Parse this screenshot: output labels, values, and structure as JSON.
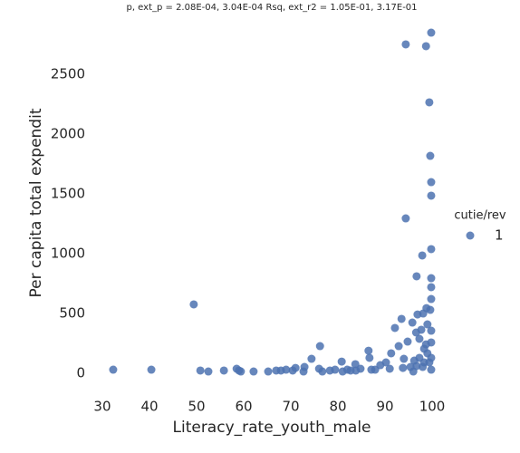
{
  "chart_data": {
    "type": "scatter",
    "title": "p, ext_p = 2.08E-04, 3.04E-04 Rsq, ext_r2 = 1.05E-01, 3.17E-01",
    "xlabel": "Literacy_rate_youth_male",
    "ylabel": "Per capita total expendit",
    "legend_title": "cutie/rev",
    "legend_position": "right",
    "series": [
      {
        "name": "1",
        "color": "#4c72b0",
        "x": [
          32.3,
          40.4,
          49.4,
          50.8,
          52.5,
          55.8,
          58.5,
          59,
          59.4,
          62.1,
          65.2,
          66.9,
          67.9,
          69,
          70.4,
          71,
          72.7,
          72.9,
          74.4,
          76.2,
          76,
          76.7,
          78.3,
          79.4,
          80.8,
          81,
          82,
          82.7,
          83.7,
          83.8,
          84.8,
          86.5,
          86.7,
          87.1,
          87.9,
          89,
          90.2,
          91,
          91.3,
          92.1,
          92.9,
          93.5,
          93.8,
          94,
          94.4,
          94.4,
          94.8,
          95.4,
          95.8,
          96,
          96.2,
          96.6,
          96.7,
          96.9,
          97.3,
          97.7,
          97.9,
          98.1,
          98.3,
          98.7,
          98.8,
          99,
          99.4,
          99.6,
          99.8,
          99.8,
          99.8,
          99.8,
          99.8,
          99.8,
          99.8,
          99.6,
          99.8,
          98.7,
          99,
          99.8,
          99.8,
          99.8,
          98,
          96.7,
          97.3,
          98.3,
          99.4
        ],
        "values": [
          30,
          30,
          576,
          23,
          15,
          23,
          38,
          23,
          15,
          15,
          15,
          23,
          23,
          30,
          23,
          45,
          15,
          53,
          121,
          227,
          38,
          15,
          23,
          30,
          98,
          15,
          30,
          23,
          76,
          23,
          38,
          189,
          129,
          30,
          30,
          68,
          91,
          38,
          167,
          379,
          227,
          455,
          45,
          121,
          2750,
          1295,
          265,
          53,
          424,
          15,
          106,
          341,
          811,
          492,
          288,
          364,
          985,
          500,
          91,
          2735,
          545,
          409,
          2265,
          1818,
          1038,
          2848,
          1598,
          1485,
          795,
          720,
          621,
          530,
          356,
          242,
          167,
          258,
          129,
          30,
          53,
          61,
          129,
          205,
          91
        ]
      }
    ],
    "xlim": [
      28.6,
      103.4
    ],
    "xticks": [
      30,
      40,
      50,
      60,
      70,
      80,
      90,
      100
    ],
    "ylim": [
      -140,
      2980
    ],
    "yticks": [
      0,
      500,
      1000,
      1500,
      2000,
      2500
    ],
    "grid": false
  }
}
